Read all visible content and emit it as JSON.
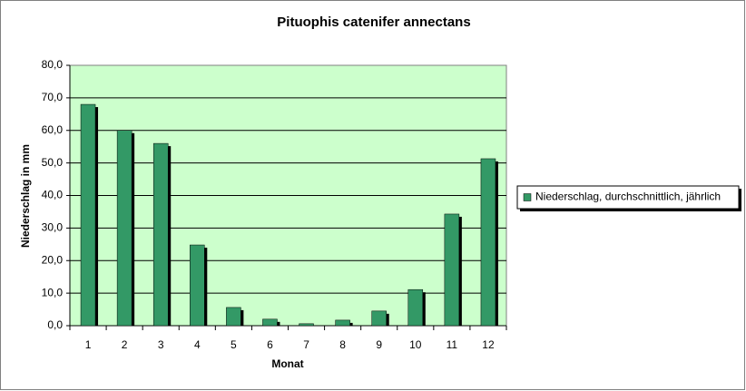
{
  "chart_data": {
    "type": "bar",
    "title": "Pituophis catenifer annectans",
    "x_label": "Monat",
    "y_label": "Niederschlag in mm",
    "categories": [
      "1",
      "2",
      "3",
      "4",
      "5",
      "6",
      "7",
      "8",
      "9",
      "10",
      "11",
      "12"
    ],
    "series": [
      {
        "name": "Niederschlag, durchschnittlich, jährlich",
        "color": "#339966",
        "values": [
          68.0,
          60.0,
          56.0,
          24.8,
          5.6,
          2.0,
          0.6,
          1.7,
          4.5,
          11.1,
          34.3,
          51.3
        ]
      }
    ],
    "ylim": [
      0,
      80
    ],
    "yticks": [
      {
        "value": 0,
        "label": "0,0"
      },
      {
        "value": 10,
        "label": "10,0"
      },
      {
        "value": 20,
        "label": "20,0"
      },
      {
        "value": 30,
        "label": "30,0"
      },
      {
        "value": 40,
        "label": "40,0"
      },
      {
        "value": 50,
        "label": "50,0"
      },
      {
        "value": 60,
        "label": "60,0"
      },
      {
        "value": 70,
        "label": "70,0"
      },
      {
        "value": 80,
        "label": "80,0"
      }
    ],
    "grid": true,
    "legend": "right"
  }
}
